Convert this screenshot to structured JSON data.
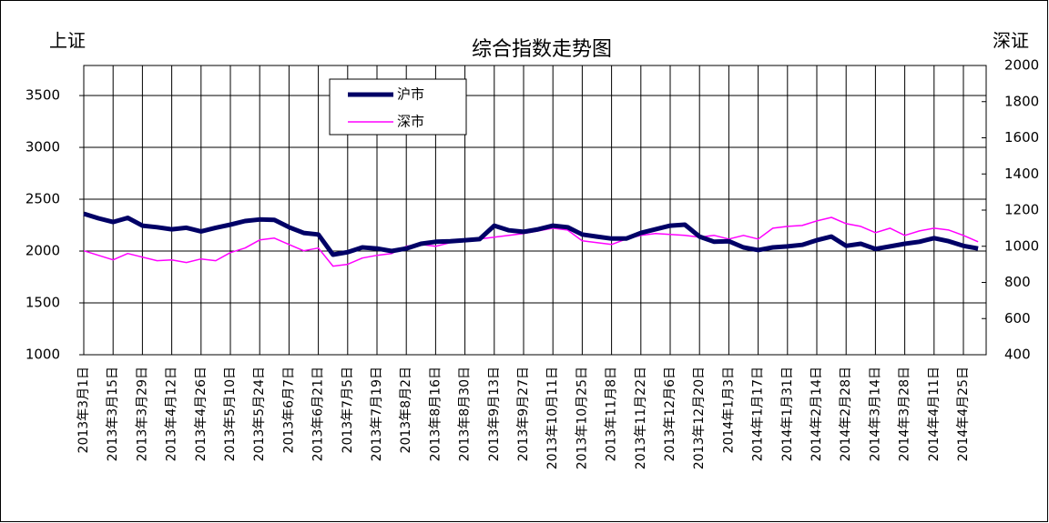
{
  "chart_data": {
    "type": "line",
    "title": "综合指数走势图",
    "y_label": "上证",
    "y2_label": "深证",
    "categories": [
      "2013年3月1日",
      null,
      "2013年3月15日",
      null,
      "2013年3月29日",
      null,
      "2013年4月12日",
      null,
      "2013年4月26日",
      null,
      "2013年5月10日",
      null,
      "2013年5月24日",
      null,
      "2013年6月7日",
      null,
      "2013年6月21日",
      null,
      "2013年7月5日",
      null,
      "2013年7月19日",
      null,
      "2013年8月2日",
      null,
      "2013年8月16日",
      null,
      "2013年8月30日",
      null,
      "2013年9月13日",
      null,
      "2013年9月27日",
      null,
      "2013年10月11日",
      null,
      "2013年10月25日",
      null,
      "2013年11月8日",
      null,
      "2013年11月22日",
      null,
      "2013年12月6日",
      null,
      "2013年12月20日",
      null,
      "2014年1月3日",
      null,
      "2014年1月17日",
      null,
      "2014年1月31日",
      null,
      "2014年2月14日",
      null,
      "2014年2月28日",
      null,
      "2014年3月14日",
      null,
      "2014年3月28日",
      null,
      "2014年4月11日",
      null,
      "2014年4月25日",
      null
    ],
    "series": [
      {
        "name": "沪市",
        "color": "#000066",
        "axis": "y",
        "values": [
          2360,
          2316,
          2280,
          2320,
          2245,
          2230,
          2210,
          2225,
          2190,
          2225,
          2255,
          2290,
          2305,
          2300,
          2230,
          2175,
          2160,
          1965,
          1990,
          2035,
          2025,
          2000,
          2025,
          2070,
          2090,
          2095,
          2105,
          2115,
          2245,
          2200,
          2185,
          2210,
          2245,
          2230,
          2160,
          2140,
          2120,
          2120,
          2175,
          2210,
          2245,
          2255,
          2140,
          2090,
          2095,
          2035,
          2010,
          2035,
          2045,
          2060,
          2105,
          2140,
          2050,
          2070,
          2020,
          2045,
          2070,
          2090,
          2125,
          2095,
          2050,
          2025
        ]
      },
      {
        "name": "深市",
        "color": "#ff00ff",
        "axis": "y2",
        "values": [
          975,
          950,
          925,
          960,
          940,
          920,
          925,
          910,
          930,
          920,
          965,
          990,
          1035,
          1045,
          1010,
          975,
          990,
          890,
          900,
          935,
          950,
          960,
          1000,
          1010,
          1000,
          1020,
          1040,
          1040,
          1050,
          1060,
          1070,
          1085,
          1100,
          1090,
          1030,
          1020,
          1010,
          1040,
          1060,
          1070,
          1065,
          1060,
          1050,
          1060,
          1040,
          1060,
          1040,
          1100,
          1110,
          1115,
          1140,
          1160,
          1125,
          1110,
          1075,
          1100,
          1060,
          1085,
          1100,
          1090,
          1060,
          1025
        ]
      }
    ],
    "ylim": [
      1000,
      3790
    ],
    "yticks": [
      1000,
      1500,
      2000,
      2500,
      3000,
      3500
    ],
    "y2lim": [
      400,
      2000
    ],
    "y2ticks": [
      400,
      600,
      800,
      1000,
      1200,
      1400,
      1600,
      1800,
      2000
    ],
    "grid": true
  }
}
